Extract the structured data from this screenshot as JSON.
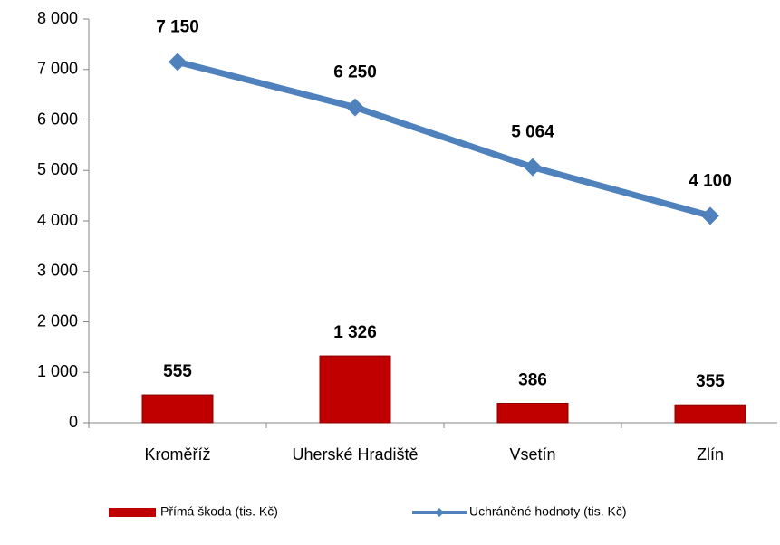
{
  "chart_data": {
    "type": "combo",
    "categories": [
      "Kroměříž",
      "Uherské Hradiště",
      "Vsetín",
      "Zlín"
    ],
    "series": [
      {
        "name": "Přímá škoda (tis. Kč)",
        "type": "bar",
        "color": "#c00000",
        "values": [
          555,
          1326,
          386,
          355
        ],
        "value_labels": [
          "555",
          "1 326",
          "386",
          "355"
        ]
      },
      {
        "name": "Uchráněné hodnoty (tis. Kč)",
        "type": "line",
        "color": "#4f81bd",
        "values": [
          7150,
          6250,
          5064,
          4100
        ],
        "value_labels": [
          "7 150",
          "6 250",
          "5 064",
          "4 100"
        ]
      }
    ],
    "ylim": [
      0,
      8000
    ],
    "yticks": [
      {
        "value": 0,
        "label": "0"
      },
      {
        "value": 1000,
        "label": "1 000"
      },
      {
        "value": 2000,
        "label": "2 000"
      },
      {
        "value": 3000,
        "label": "3 000"
      },
      {
        "value": 4000,
        "label": "4 000"
      },
      {
        "value": 5000,
        "label": "5 000"
      },
      {
        "value": 6000,
        "label": "6 000"
      },
      {
        "value": 7000,
        "label": "7 000"
      },
      {
        "value": 8000,
        "label": "8 000"
      }
    ],
    "legend": "bottom"
  }
}
